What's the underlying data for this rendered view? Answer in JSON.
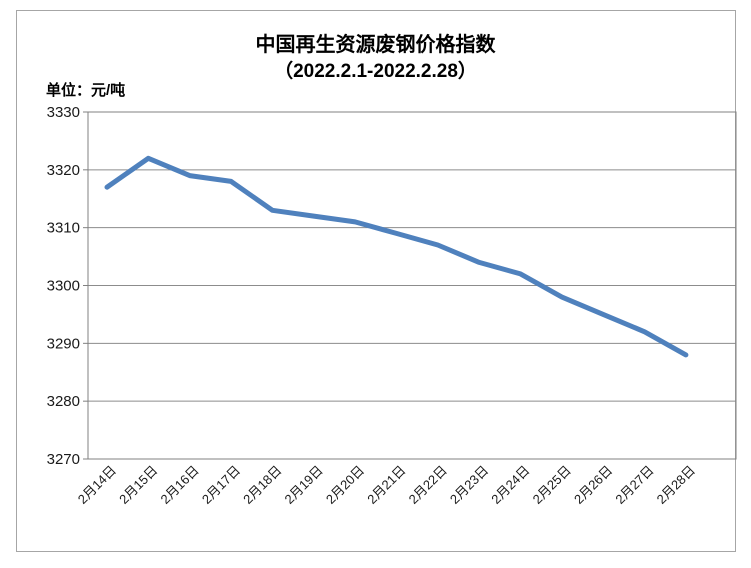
{
  "page": {
    "background": "#ffffff"
  },
  "chart": {
    "title": "中国再生资源废钢价格指数",
    "subtitle": "（2022.2.1-2022.2.28）",
    "unit_label": "单位：元/吨",
    "colors": {
      "line": "#4F81BD",
      "gridline": "#8C8C8C",
      "axis": "#808080",
      "frame_border": "#A6A6A6",
      "text": "#000000"
    }
  },
  "chart_data": {
    "type": "line",
    "title": "中国再生资源废钢价格指数",
    "subtitle": "（2022.2.1-2022.2.28）",
    "ylabel": "单位：元/吨",
    "xlabel": "",
    "categories": [
      "2月14日",
      "2月15日",
      "2月16日",
      "2月17日",
      "2月18日",
      "2月19日",
      "2月20日",
      "2月21日",
      "2月22日",
      "2月23日",
      "2月24日",
      "2月25日",
      "2月26日",
      "2月27日",
      "2月28日"
    ],
    "values": [
      3317,
      3322,
      3319,
      3318,
      3313,
      3312,
      3311,
      3309,
      3307,
      3304,
      3302,
      3298,
      3295,
      3292,
      3288
    ],
    "ylim": [
      3270,
      3330
    ],
    "yticks": [
      3330,
      3320,
      3310,
      3300,
      3290,
      3280,
      3270
    ],
    "grid": true,
    "legend": "none",
    "line_color": "#4F81BD",
    "x_label_rotation_deg": 45
  }
}
